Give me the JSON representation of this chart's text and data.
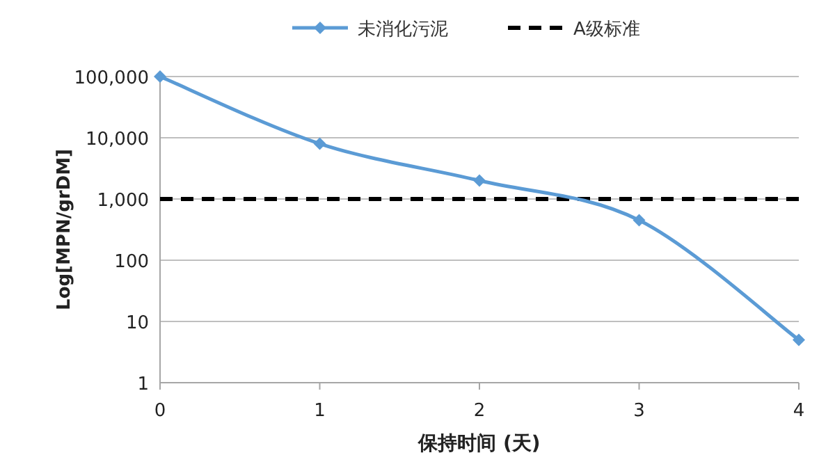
{
  "chart_data": {
    "type": "line",
    "xlabel": "保持时间 (天)",
    "ylabel": "Log[MPN/grDM]",
    "x": [
      0,
      1,
      2,
      3,
      4
    ],
    "series": [
      {
        "name": "未消化污泥",
        "color": "#5b9bd5",
        "values": [
          100000,
          8000,
          2000,
          450,
          5
        ]
      }
    ],
    "ref_lines": [
      {
        "axis": "y",
        "value": 1000,
        "label": "A级标准",
        "color": "#000000",
        "line_style": "dashed"
      }
    ],
    "xlim": [
      0,
      4
    ],
    "xticks": [
      0,
      1,
      2,
      3,
      4
    ],
    "ylim": [
      1,
      100000
    ],
    "yticks": [
      1,
      10,
      100,
      {
        "value": 1000,
        "label": "1,000"
      },
      {
        "value": 10000,
        "label": "10,000"
      },
      {
        "value": 100000,
        "label": "100,000"
      }
    ],
    "log": "y",
    "grid": "y",
    "legend": "top",
    "marker": "diamond",
    "line_style": "solid"
  }
}
